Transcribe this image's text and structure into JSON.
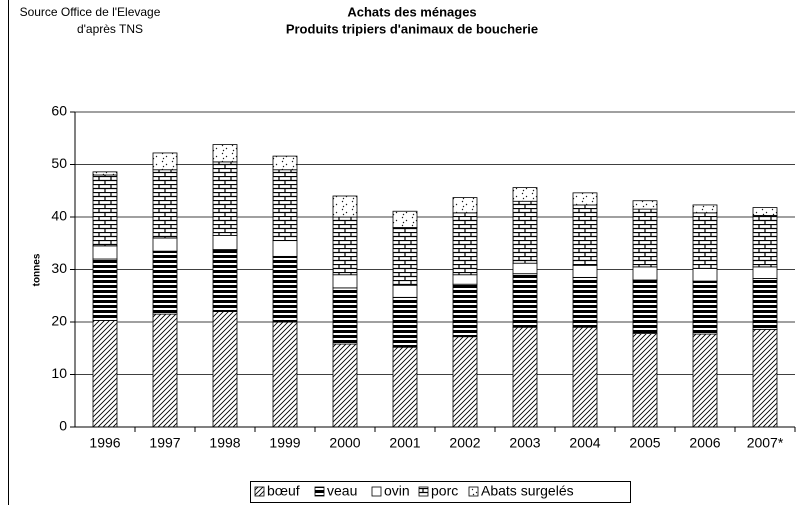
{
  "chart_data": {
    "type": "stacked-bar",
    "title": [
      "Achats des ménages",
      "Produits tripiers d'animaux de boucherie"
    ],
    "source": [
      "Source Office de l'Elevage",
      "d'après TNS"
    ],
    "y_label": "tonnes",
    "categories": [
      "1996",
      "1997",
      "1998",
      "1999",
      "2000",
      "2001",
      "2002",
      "2003",
      "2004",
      "2005",
      "2006",
      "2007*"
    ],
    "series": [
      {
        "name": "bœuf",
        "color": "#000000",
        "pattern": "diagonal",
        "values": [
          20.3,
          21.5,
          22,
          20,
          15.8,
          15.2,
          17.2,
          19,
          19,
          17.8,
          17.7,
          18.6
        ]
      },
      {
        "name": "veau",
        "color": "#000000",
        "pattern": "hstripes",
        "values": [
          11.7,
          12,
          11.8,
          12.5,
          10.7,
          9.5,
          10,
          10.2,
          9.5,
          10.2,
          10.1,
          9.7
        ]
      },
      {
        "name": "ovin",
        "color": "#000000",
        "pattern": "none",
        "values": [
          2.5,
          2.5,
          2.7,
          3,
          2.5,
          2.3,
          1.8,
          2,
          2.3,
          2.5,
          2.4,
          2.2
        ]
      },
      {
        "name": "porc",
        "color": "#000000",
        "pattern": "brick",
        "values": [
          13.5,
          13,
          14,
          13.5,
          11,
          11,
          11.8,
          11.8,
          11.5,
          11,
          10.6,
          9.8
        ]
      },
      {
        "name": "Abats surgelés",
        "color": "#000000",
        "pattern": "dots",
        "values": [
          0.6,
          3.2,
          3.3,
          2.6,
          4,
          3.1,
          2.9,
          2.6,
          2.3,
          1.6,
          1.5,
          1.5
        ]
      }
    ],
    "ylim": [
      0,
      60
    ],
    "yticks": [
      0,
      10,
      20,
      30,
      40,
      50,
      60
    ],
    "grid": true,
    "legend": "bottom"
  }
}
